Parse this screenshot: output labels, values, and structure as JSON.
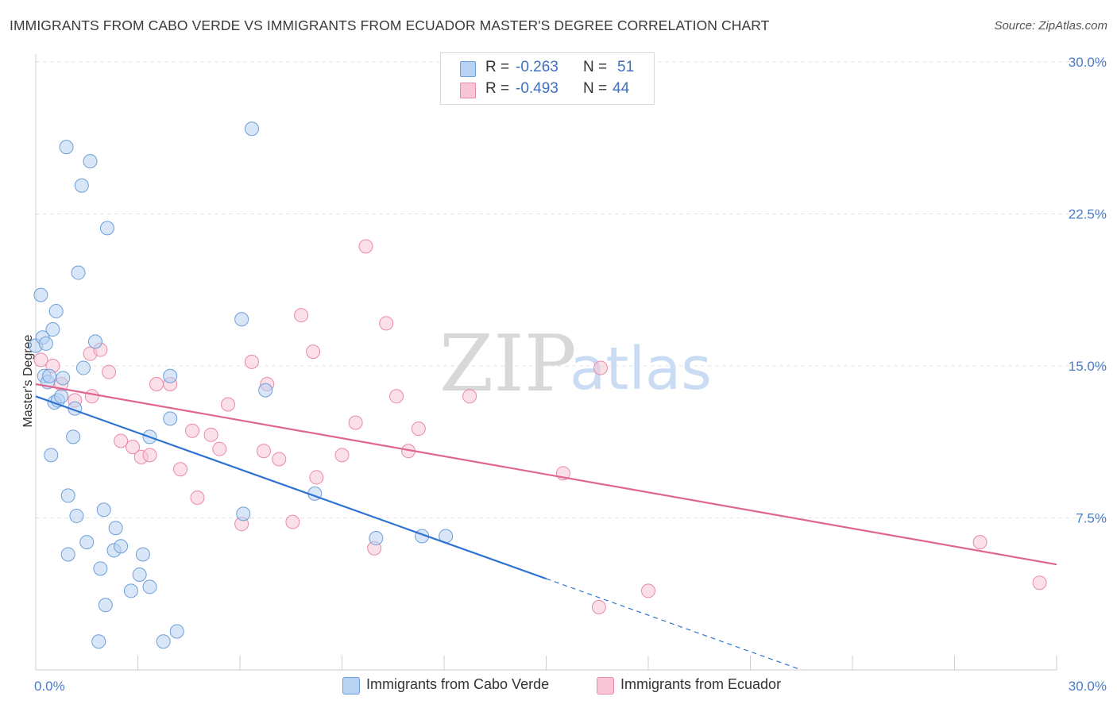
{
  "header": {
    "title": "IMMIGRANTS FROM CABO VERDE VS IMMIGRANTS FROM ECUADOR MASTER'S DEGREE CORRELATION CHART",
    "source": "Source: ZipAtlas.com"
  },
  "watermark": {
    "zip": "ZIP",
    "atlas": "atlas"
  },
  "legend": {
    "rows": [
      {
        "r_label": "R =",
        "r_value": "-0.263",
        "n_label": "N =",
        "n_value": "51"
      },
      {
        "r_label": "R =",
        "r_value": "-0.493",
        "n_label": "N =",
        "n_value": "44"
      }
    ]
  },
  "bottom_legend": {
    "cabo": "Immigrants from Cabo Verde",
    "ecuador": "Immigrants from Ecuador"
  },
  "colors": {
    "cabo_fill": "#b8d2f2",
    "cabo_stroke": "#6d9fd8",
    "cabo_line": "#2f73d0",
    "ecuador_fill": "#f8c6d6",
    "ecuador_stroke": "#e88aa8",
    "ecuador_line": "#e06690",
    "tick_label": "#4a7cc7"
  },
  "chart_data": {
    "type": "scatter",
    "title": "IMMIGRANTS FROM CABO VERDE VS IMMIGRANTS FROM ECUADOR MASTER'S DEGREE CORRELATION CHART",
    "xlabel": "",
    "ylabel": "Master's Degree",
    "xlim": [
      0,
      30
    ],
    "ylim": [
      0,
      30
    ],
    "x_tick_labels": [
      "0.0%",
      "30.0%"
    ],
    "y_ticks": [
      {
        "value": 7.5,
        "label": "7.5%"
      },
      {
        "value": 15.0,
        "label": "15.0%"
      },
      {
        "value": 22.5,
        "label": "22.5%"
      },
      {
        "value": 30.0,
        "label": "30.0%"
      }
    ],
    "grid": true,
    "series": [
      {
        "name": "Immigrants from Cabo Verde",
        "points": [
          [
            0.0,
            16.0
          ],
          [
            0.15,
            18.5
          ],
          [
            0.2,
            16.4
          ],
          [
            0.25,
            14.5
          ],
          [
            0.3,
            16.1
          ],
          [
            0.35,
            14.2
          ],
          [
            0.4,
            14.5
          ],
          [
            0.45,
            10.6
          ],
          [
            0.5,
            16.8
          ],
          [
            0.55,
            13.2
          ],
          [
            0.6,
            17.7
          ],
          [
            0.65,
            13.3
          ],
          [
            0.75,
            13.5
          ],
          [
            0.8,
            14.4
          ],
          [
            0.9,
            25.8
          ],
          [
            0.95,
            8.6
          ],
          [
            0.95,
            5.7
          ],
          [
            1.1,
            11.5
          ],
          [
            1.15,
            12.9
          ],
          [
            1.2,
            7.6
          ],
          [
            1.25,
            19.6
          ],
          [
            1.35,
            23.9
          ],
          [
            1.4,
            14.9
          ],
          [
            1.5,
            6.3
          ],
          [
            1.6,
            25.1
          ],
          [
            1.75,
            16.2
          ],
          [
            1.9,
            5.0
          ],
          [
            2.0,
            7.9
          ],
          [
            2.05,
            3.2
          ],
          [
            2.1,
            21.8
          ],
          [
            2.3,
            5.9
          ],
          [
            2.35,
            7.0
          ],
          [
            2.5,
            6.1
          ],
          [
            2.8,
            3.9
          ],
          [
            3.05,
            4.7
          ],
          [
            3.15,
            5.7
          ],
          [
            3.35,
            11.5
          ],
          [
            3.35,
            4.1
          ],
          [
            3.75,
            1.4
          ],
          [
            3.95,
            14.5
          ],
          [
            3.95,
            12.4
          ],
          [
            4.15,
            1.9
          ],
          [
            6.05,
            17.3
          ],
          [
            6.1,
            7.7
          ],
          [
            6.35,
            26.7
          ],
          [
            6.75,
            13.8
          ],
          [
            8.2,
            8.7
          ],
          [
            10.0,
            6.5
          ],
          [
            11.35,
            6.6
          ],
          [
            12.05,
            6.6
          ],
          [
            1.85,
            1.4
          ]
        ]
      },
      {
        "name": "Immigrants from Ecuador",
        "points": [
          [
            0.15,
            15.3
          ],
          [
            0.5,
            15.0
          ],
          [
            0.75,
            14.1
          ],
          [
            1.15,
            13.3
          ],
          [
            1.6,
            15.6
          ],
          [
            1.65,
            13.5
          ],
          [
            1.9,
            15.8
          ],
          [
            2.15,
            14.7
          ],
          [
            2.5,
            11.3
          ],
          [
            2.85,
            11.0
          ],
          [
            3.1,
            10.5
          ],
          [
            3.35,
            10.6
          ],
          [
            3.55,
            14.1
          ],
          [
            3.95,
            14.1
          ],
          [
            4.25,
            9.9
          ],
          [
            4.6,
            11.8
          ],
          [
            4.75,
            8.5
          ],
          [
            5.15,
            11.6
          ],
          [
            5.4,
            10.9
          ],
          [
            5.65,
            13.1
          ],
          [
            6.05,
            7.2
          ],
          [
            6.35,
            15.2
          ],
          [
            6.7,
            10.8
          ],
          [
            6.8,
            14.1
          ],
          [
            7.15,
            10.4
          ],
          [
            7.55,
            7.3
          ],
          [
            7.8,
            17.5
          ],
          [
            8.15,
            15.7
          ],
          [
            8.25,
            9.5
          ],
          [
            9.0,
            10.6
          ],
          [
            9.4,
            12.2
          ],
          [
            9.7,
            20.9
          ],
          [
            9.95,
            6.0
          ],
          [
            10.3,
            17.1
          ],
          [
            10.6,
            13.5
          ],
          [
            10.95,
            10.8
          ],
          [
            11.25,
            11.9
          ],
          [
            12.75,
            13.5
          ],
          [
            15.5,
            9.7
          ],
          [
            16.55,
            3.1
          ],
          [
            16.6,
            14.9
          ],
          [
            18.0,
            3.9
          ],
          [
            27.75,
            6.3
          ],
          [
            29.5,
            4.3
          ]
        ]
      }
    ],
    "trend_lines": [
      {
        "series": "Immigrants from Cabo Verde",
        "solid": [
          [
            0.0,
            13.5
          ],
          [
            15.0,
            4.5
          ]
        ],
        "dashed": [
          [
            15.0,
            4.5
          ],
          [
            22.5,
            0.0
          ]
        ]
      },
      {
        "series": "Immigrants from Ecuador",
        "solid": [
          [
            0.0,
            14.1
          ],
          [
            30.0,
            5.2
          ]
        ]
      }
    ]
  }
}
